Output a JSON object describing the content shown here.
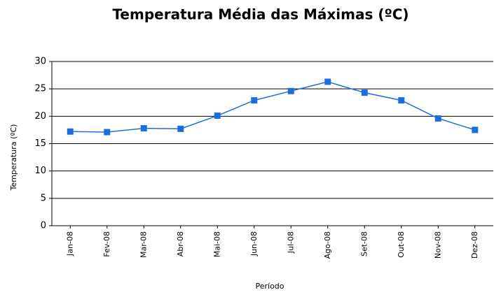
{
  "chart_data": {
    "type": "line",
    "title": "Temperatura Média das Máximas (ºC)",
    "y_label": "Temperatura (ºC)",
    "x_label": "Período",
    "categories": [
      "Jan-08",
      "Fev-08",
      "Mar-08",
      "Abr-08",
      "Mai-08",
      "Jun-08",
      "Jul-08",
      "Ago-08",
      "Set-08",
      "Out-08",
      "Nov-08",
      "Dez-08"
    ],
    "values": [
      17.2,
      17.1,
      17.8,
      17.7,
      20.1,
      22.9,
      24.6,
      26.3,
      24.3,
      22.9,
      19.6,
      17.5
    ],
    "color": "#1a6fe0",
    "ylim": [
      0,
      30
    ],
    "yticks": [
      0,
      5,
      10,
      15,
      20,
      25,
      30
    ],
    "grid": true
  }
}
